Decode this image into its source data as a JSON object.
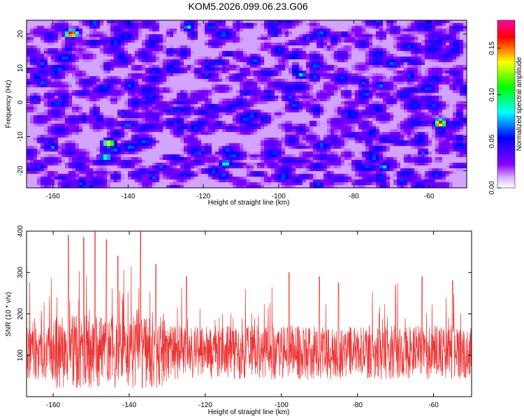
{
  "title": "KOM5.2026.099.06.23.G06",
  "chart_data": [
    {
      "type": "heatmap",
      "xlabel": "Height of straight line (km)",
      "ylabel": "Frequency (Hz)",
      "xlim": [
        -167,
        -50
      ],
      "ylim": [
        -25,
        24
      ],
      "x_ticks": [
        -160,
        -140,
        -120,
        -100,
        -80,
        -60
      ],
      "y_ticks": [
        -20,
        -10,
        0,
        10,
        20
      ],
      "colorbar": {
        "label": "Normalized spectral amplitude",
        "range": [
          0.0,
          0.18
        ],
        "ticks": [
          "0.00",
          "0.05",
          "0.10",
          "0.15"
        ],
        "colors": [
          "#ffffff",
          "#8800ff",
          "#0000ff",
          "#00ffff",
          "#00ff00",
          "#ffff00",
          "#ff0000",
          "#ff00aa"
        ]
      },
      "hotspots": [
        {
          "x": -155,
          "y": 20,
          "value": 0.18
        },
        {
          "x": -145,
          "y": -12,
          "value": 0.15
        },
        {
          "x": -57,
          "y": -6,
          "value": 0.17
        },
        {
          "x": -146,
          "y": -16,
          "value": 0.1
        },
        {
          "x": -114,
          "y": -18,
          "value": 0.1
        },
        {
          "x": -124,
          "y": 22,
          "value": 0.08
        },
        {
          "x": -94,
          "y": 8,
          "value": 0.08
        },
        {
          "x": -72,
          "y": -19,
          "value": 0.08
        },
        {
          "x": -73,
          "y": 5,
          "value": 0.07
        },
        {
          "x": -160,
          "y": -13,
          "value": 0.07
        }
      ]
    },
    {
      "type": "line",
      "xlabel": "Height of straight line (km)",
      "ylabel": "SNR (10 * v/v)",
      "xlim": [
        -167,
        -50
      ],
      "ylim": [
        0,
        400
      ],
      "x_ticks": [
        -160,
        -140,
        -120,
        -100,
        -80,
        -60
      ],
      "y_ticks": [
        100,
        200,
        300,
        400
      ],
      "color": "#ee3333",
      "n_points": 1800,
      "baseline_mean": 100,
      "peaks": [
        {
          "x": -156,
          "y": 390
        },
        {
          "x": -152,
          "y": 385
        },
        {
          "x": -149,
          "y": 398
        },
        {
          "x": -146,
          "y": 380
        },
        {
          "x": -137,
          "y": 398
        },
        {
          "x": -143,
          "y": 340
        },
        {
          "x": -133,
          "y": 320
        },
        {
          "x": -125,
          "y": 290
        },
        {
          "x": -98,
          "y": 300
        },
        {
          "x": -90,
          "y": 290
        },
        {
          "x": -85,
          "y": 275
        },
        {
          "x": -70,
          "y": 270
        },
        {
          "x": -63,
          "y": 290
        },
        {
          "x": -55,
          "y": 280
        }
      ]
    }
  ]
}
